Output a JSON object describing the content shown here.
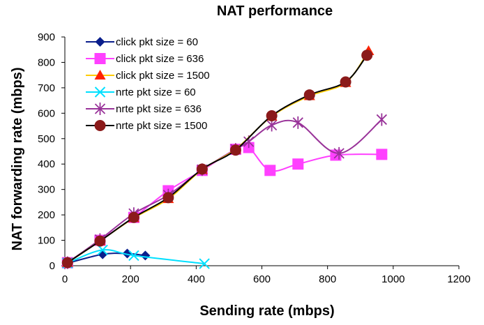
{
  "chart_data": {
    "type": "line",
    "title": "NAT performance",
    "xlabel": "Sending rate (mbps)",
    "ylabel": "NAT forwarding rate (mbps)",
    "xlim": [
      0,
      1200
    ],
    "ylim": [
      0,
      900
    ],
    "xticks": [
      "0",
      "200",
      "400",
      "600",
      "800",
      "1000",
      "1200"
    ],
    "yticks": [
      "0",
      "100",
      "200",
      "300",
      "400",
      "500",
      "600",
      "700",
      "800",
      "900"
    ],
    "grid": false,
    "legend_position": "top-left",
    "series": [
      {
        "name": "click pkt size = 60",
        "color": "#0a1e8c",
        "marker": "diamond",
        "x": [
          8,
          115,
          190,
          245
        ],
        "y": [
          10,
          45,
          48,
          40
        ]
      },
      {
        "name": "click pkt size = 636",
        "color": "#ff40ff",
        "marker": "square",
        "x": [
          8,
          107,
          210,
          315,
          418,
          520,
          560,
          625,
          710,
          825,
          965
        ],
        "y": [
          12,
          100,
          190,
          295,
          375,
          458,
          465,
          375,
          400,
          435,
          438
        ]
      },
      {
        "name": "click pkt size = 1500",
        "color": "#ff2200",
        "line_color": "#ffcc00",
        "marker": "triangle",
        "x": [
          8,
          107,
          210,
          315,
          418,
          520,
          630,
          745,
          855,
          925
        ],
        "y": [
          12,
          97,
          188,
          263,
          378,
          458,
          588,
          668,
          720,
          845
        ]
      },
      {
        "name": "nrte pkt size = 60",
        "color": "#00e0ff",
        "marker": "x",
        "x": [
          8,
          115,
          210,
          425
        ],
        "y": [
          10,
          62,
          40,
          8
        ]
      },
      {
        "name": "nrte pkt size = 636",
        "color": "#993399",
        "marker": "star",
        "x": [
          8,
          107,
          210,
          315,
          418,
          520,
          560,
          630,
          710,
          835,
          965
        ],
        "y": [
          12,
          103,
          205,
          278,
          378,
          458,
          488,
          553,
          563,
          442,
          575
        ]
      },
      {
        "name": "nrte pkt size = 1500",
        "color": "#8b1a1a",
        "line_color": "#000000",
        "marker": "circle",
        "x": [
          8,
          107,
          210,
          315,
          418,
          520,
          630,
          745,
          855,
          920
        ],
        "y": [
          12,
          97,
          190,
          268,
          380,
          455,
          590,
          672,
          723,
          828
        ]
      }
    ]
  }
}
